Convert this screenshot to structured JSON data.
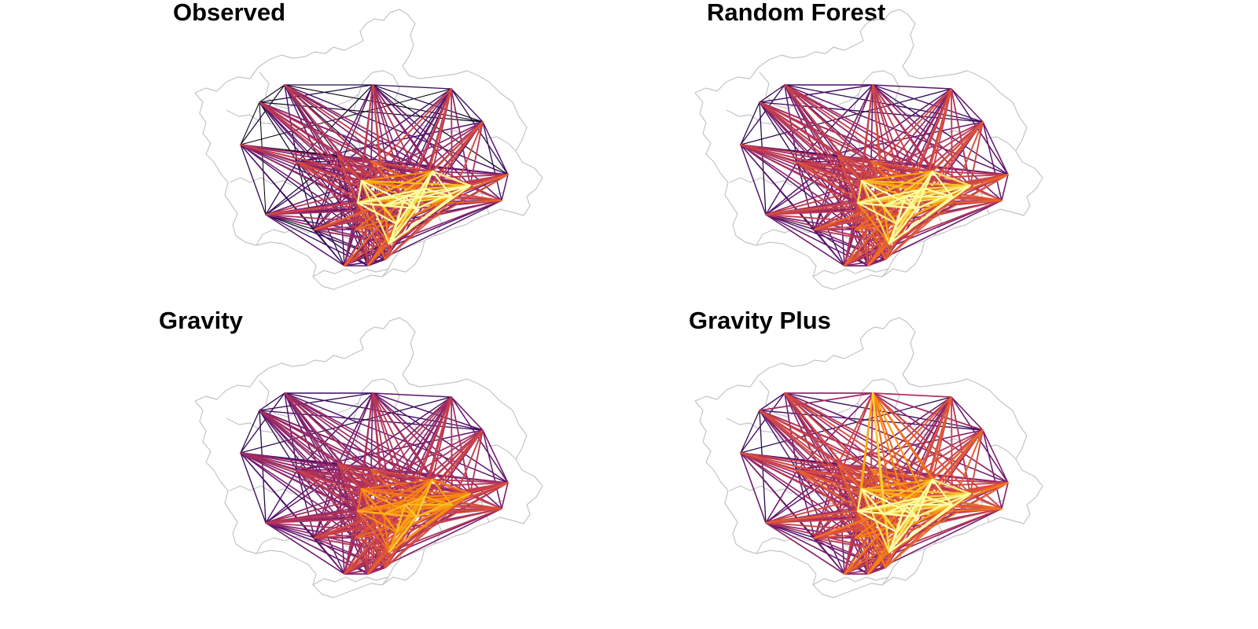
{
  "figure": {
    "panels": [
      {
        "id": "observed",
        "title": "Observed",
        "palette": "inferno",
        "model": "observed"
      },
      {
        "id": "random-forest",
        "title": "Random Forest",
        "palette": "inferno",
        "model": "rf"
      },
      {
        "id": "gravity",
        "title": "Gravity",
        "palette": "inferno",
        "model": "gravity"
      },
      {
        "id": "gravity-plus",
        "title": "Gravity Plus",
        "palette": "inferno",
        "model": "gravityplus"
      }
    ],
    "colors": {
      "boundary": "#c4c4c4",
      "inferno_low": "#160b39",
      "inferno_mid": "#a52c60",
      "inferno_high": "#fcffa4"
    }
  }
}
